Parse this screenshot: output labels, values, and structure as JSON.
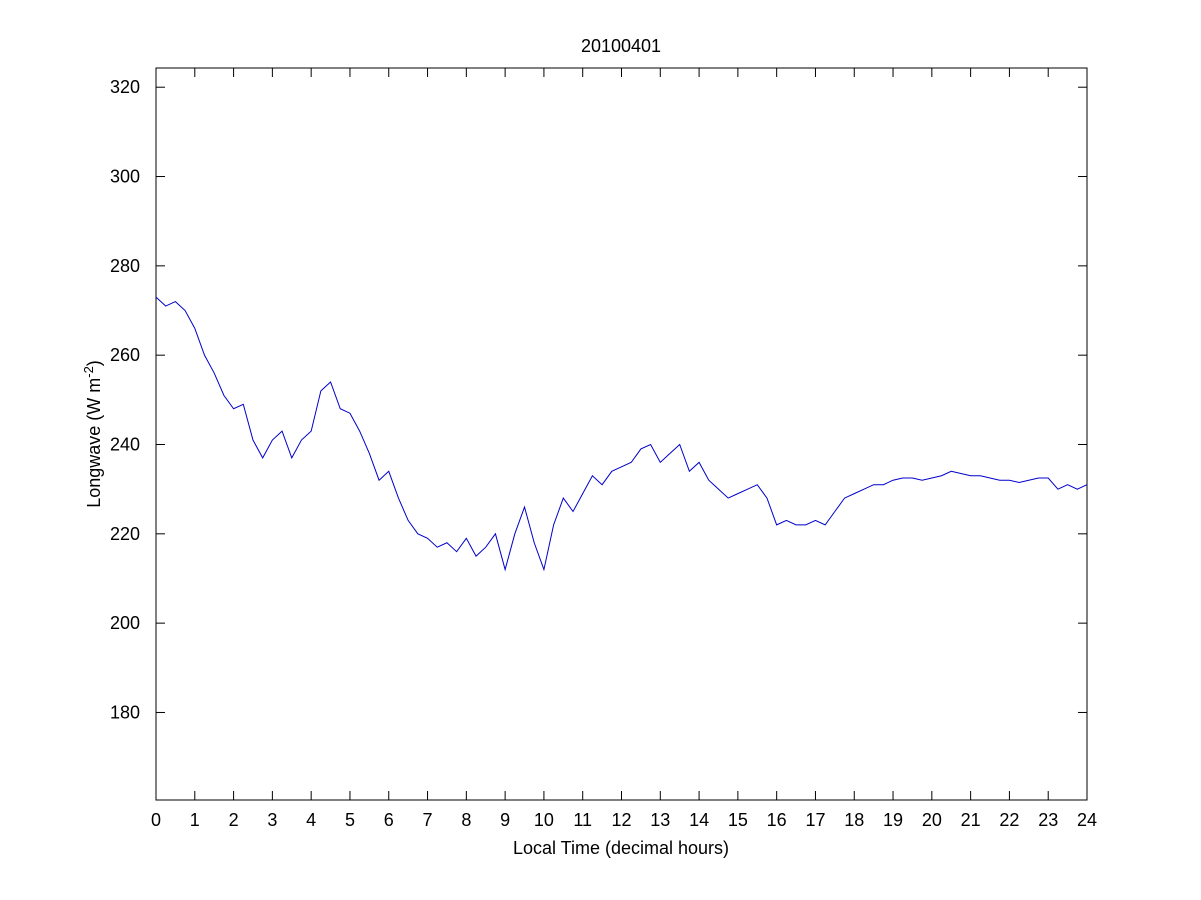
{
  "chart_data": {
    "type": "line",
    "title": "20100401",
    "xlabel": "Local Time (decimal hours)",
    "ylabel": {
      "text": "Longwave (W m",
      "superscript": "-2",
      "suffix": ")"
    },
    "xlim": [
      0,
      24
    ],
    "xticks": [
      0,
      1,
      2,
      3,
      4,
      5,
      6,
      7,
      8,
      9,
      10,
      11,
      12,
      13,
      14,
      15,
      16,
      17,
      18,
      19,
      20,
      21,
      22,
      23,
      24
    ],
    "ylim": [
      160.4,
      324.3
    ],
    "yticks": [
      180,
      200,
      220,
      240,
      260,
      280,
      300,
      320
    ],
    "grid": false,
    "x": [
      0,
      0.25,
      0.5,
      0.75,
      1,
      1.25,
      1.5,
      1.75,
      2,
      2.25,
      2.5,
      2.75,
      3,
      3.25,
      3.5,
      3.75,
      4,
      4.25,
      4.5,
      4.75,
      5,
      5.25,
      5.5,
      5.75,
      6,
      6.25,
      6.5,
      6.75,
      7,
      7.25,
      7.5,
      7.75,
      8,
      8.25,
      8.5,
      8.75,
      9,
      9.25,
      9.5,
      9.75,
      10,
      10.25,
      10.5,
      10.75,
      11,
      11.25,
      11.5,
      11.75,
      12,
      12.25,
      12.5,
      12.75,
      13,
      13.25,
      13.5,
      13.75,
      14,
      14.25,
      14.5,
      14.75,
      15,
      15.25,
      15.5,
      15.75,
      16,
      16.25,
      16.5,
      16.75,
      17,
      17.25,
      17.5,
      17.75,
      18,
      18.25,
      18.5,
      18.75,
      19,
      19.25,
      19.5,
      19.75,
      20,
      20.25,
      20.5,
      20.75,
      21,
      21.25,
      21.5,
      21.75,
      22,
      22.25,
      22.5,
      22.75,
      23,
      23.25,
      23.5,
      23.75,
      24
    ],
    "series": [
      {
        "color": "#0000cc",
        "values": [
          273,
          271,
          272,
          270,
          266,
          260,
          256,
          251,
          248,
          249,
          241,
          237,
          241,
          243,
          237,
          241,
          243,
          252,
          254,
          248,
          247,
          243,
          238,
          232,
          234,
          228,
          223,
          220,
          219,
          217,
          218,
          216,
          219,
          215,
          217,
          220,
          212,
          220,
          226,
          218,
          212,
          222,
          228,
          225,
          229,
          233,
          231,
          234,
          235,
          236,
          239,
          240,
          236,
          238,
          240,
          234,
          236,
          232,
          230,
          228,
          229,
          230,
          231,
          228,
          222,
          223,
          222,
          222,
          223,
          222,
          225,
          228,
          229,
          230,
          231,
          231,
          232,
          232.5,
          232.5,
          232,
          232.5,
          233,
          234,
          233.5,
          233,
          233,
          232.5,
          232,
          232,
          231.5,
          232,
          232.5,
          232.5,
          230,
          231,
          230,
          231
        ]
      }
    ]
  }
}
